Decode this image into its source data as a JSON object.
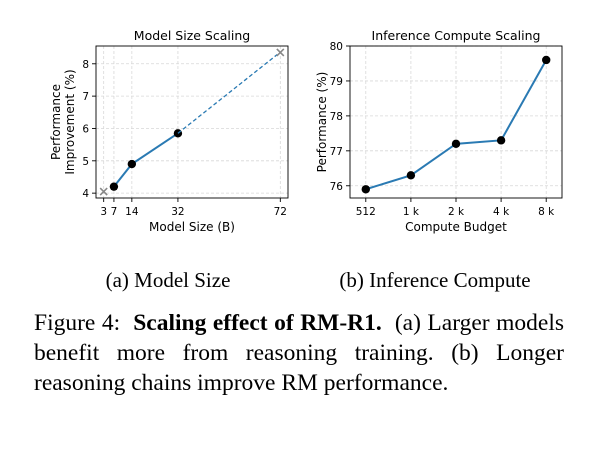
{
  "chart_data": [
    {
      "type": "line",
      "title": "Model Size Scaling",
      "xlabel": "Model Size (B)",
      "ylabel": "Performance\nImprovement (%)",
      "x_ticks": [
        3,
        7,
        14,
        32,
        72
      ],
      "x_tick_labels": [
        "3",
        "7",
        "14",
        "32",
        "72"
      ],
      "y_ticks": [
        4,
        5,
        6,
        7,
        8
      ],
      "xlim": [
        0,
        75
      ],
      "ylim": [
        3.85,
        8.55
      ],
      "grid": true,
      "series": [
        {
          "style": "solid",
          "marker": "circle",
          "x": [
            7,
            14,
            32
          ],
          "y": [
            4.2,
            4.9,
            5.85
          ]
        },
        {
          "style": "extrapolation-dashed",
          "marker": "x",
          "x": [
            3,
            72
          ],
          "y": [
            4.05,
            8.35
          ]
        }
      ],
      "colors": {
        "line": "#2a7ab3",
        "point": "#000000",
        "extrapolated_marker": "#888888",
        "grid": "#d8d8d8"
      }
    },
    {
      "type": "line",
      "title": "Inference Compute Scaling",
      "xlabel": "Compute Budget",
      "ylabel": "Performance (%)",
      "categories": [
        "512",
        "1 k",
        "2 k",
        "4 k",
        "8 k"
      ],
      "y_ticks": [
        76,
        77,
        78,
        79,
        80
      ],
      "ylim": [
        75.65,
        80.0
      ],
      "grid": true,
      "series": [
        {
          "style": "solid",
          "marker": "circle",
          "values": [
            75.9,
            76.3,
            77.2,
            77.3,
            79.6
          ]
        }
      ],
      "colors": {
        "line": "#2a7ab3",
        "point": "#000000",
        "grid": "#d8d8d8"
      }
    }
  ],
  "subcaptions": [
    "(a) Model Size",
    "(b) Inference Compute"
  ],
  "caption": {
    "prefix": "Figure 4:",
    "bold": "Scaling effect of RM-R1.",
    "text": "(a) Larger models benefit more from reasoning training. (b) Longer reasoning chains improve RM performance."
  }
}
